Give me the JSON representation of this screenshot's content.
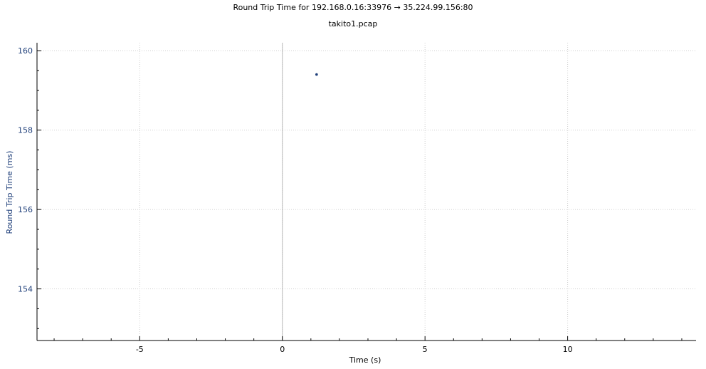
{
  "header": {
    "title": "Round Trip Time for 192.168.0.16:33976 → 35.224.99.156:80",
    "subtitle": "takito1.pcap"
  },
  "chart_data": {
    "type": "scatter",
    "title": "Round Trip Time for 192.168.0.16:33976 → 35.224.99.156:80",
    "subtitle": "takito1.pcap",
    "xlabel": "Time (s)",
    "ylabel": "Round Trip Time (ms)",
    "xlim": [
      -8.6,
      14.5
    ],
    "ylim": [
      152.7,
      160.2
    ],
    "xticks": [
      -5,
      0,
      5,
      10
    ],
    "yticks": [
      154,
      156,
      158,
      160
    ],
    "grid": true,
    "series": [
      {
        "x": [
          1.2
        ],
        "y": [
          159.4
        ],
        "color": "#1f3f7a"
      }
    ],
    "colors": {
      "ytick": "#1f3f7a",
      "point": "#1f3f7a",
      "grid": "#cfcfcf",
      "zero_line": "#b8b8b8"
    }
  }
}
